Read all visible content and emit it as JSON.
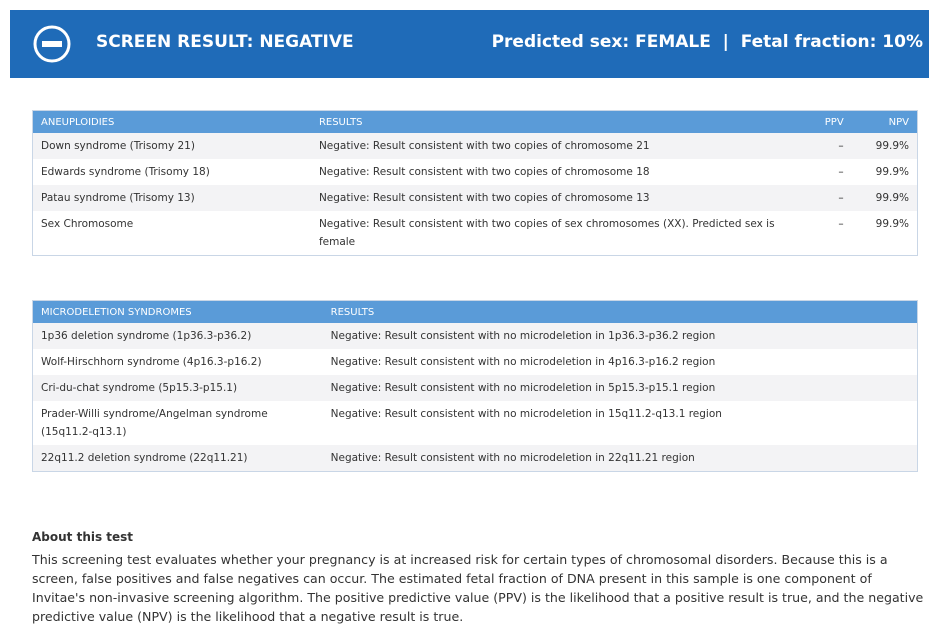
{
  "header": {
    "title": "SCREEN RESULT: NEGATIVE",
    "summary": "Predicted sex: FEMALE  |  Fetal fraction: 10%"
  },
  "aneuploidies": {
    "columns": [
      "ANEUPLOIDIES",
      "RESULTS",
      "PPV",
      "NPV"
    ],
    "rows": [
      [
        "Down syndrome (Trisomy 21)",
        "Negative: Result consistent with two copies of chromosome 21",
        "–",
        "99.9%"
      ],
      [
        "Edwards syndrome (Trisomy 18)",
        "Negative: Result consistent with two copies of chromosome 18",
        "–",
        "99.9%"
      ],
      [
        "Patau syndrome (Trisomy 13)",
        "Negative: Result consistent with two copies of chromosome 13",
        "–",
        "99.9%"
      ],
      [
        "Sex Chromosome",
        "Negative: Result consistent with two copies of sex chromosomes (XX). Predicted sex is female",
        "–",
        "99.9%"
      ]
    ]
  },
  "microdeletions": {
    "columns": [
      "MICRODELETION SYNDROMES",
      "RESULTS"
    ],
    "rows": [
      [
        "1p36 deletion syndrome (1p36.3-p36.2)",
        "Negative: Result consistent with no microdeletion in 1p36.3-p36.2 region"
      ],
      [
        "Wolf-Hirschhorn syndrome (4p16.3-p16.2)",
        "Negative: Result consistent with no microdeletion in 4p16.3-p16.2 region"
      ],
      [
        "Cri-du-chat syndrome (5p15.3-p15.1)",
        "Negative: Result consistent with no microdeletion in 5p15.3-p15.1 region"
      ],
      [
        "Prader-Willi syndrome/Angelman syndrome (15q11.2-q13.1)",
        "Negative: Result consistent with no microdeletion in 15q11.2-q13.1 region"
      ],
      [
        "22q11.2 deletion syndrome (22q11.21)",
        "Negative: Result consistent with no microdeletion in 22q11.21 region"
      ]
    ]
  },
  "about": {
    "title": "About this test",
    "text": "This screening test evaluates whether your pregnancy is at increased risk for certain types of chromosomal disorders. Because this is a screen, false positives and false negatives can occur. The estimated fetal fraction of DNA present in this sample is one component of Invitae's non-invasive screening algorithm. The positive predictive value (PPV) is the likelihood that a positive result is true, and the negative predictive value (NPV) is the likelihood that a negative result is true."
  }
}
